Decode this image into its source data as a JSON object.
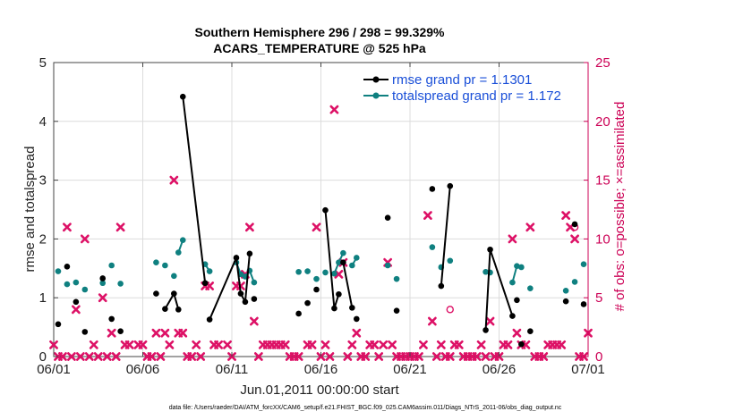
{
  "chart_data": {
    "type": "line",
    "title_line1": "Southern Hemisphere 296 / 298 = 99.329%",
    "title_line2": "ACARS_TEMPERATURE @ 525 hPa",
    "xlabel": "Jun.01,2011 00:00:00 start",
    "ylabel": "rmse and totalspread",
    "ylabel_right": "# of obs: o=possible; ×=assimilated",
    "footer": "data file: /Users/raeder/DAI/ATM_forcXX/CAM6_setup/f.e21.FHIST_BGC.f09_025.CAM6assim.011/Diags_NTrS_2011-06/obs_diag_output.nc",
    "xlim": [
      1,
      31
    ],
    "ylim": [
      0,
      5
    ],
    "ylim_right": [
      0,
      25
    ],
    "x_ticks": [
      1,
      6,
      11,
      16,
      21,
      26,
      31
    ],
    "x_tick_labels": [
      "06/01",
      "06/06",
      "06/11",
      "06/16",
      "06/21",
      "06/26",
      "07/01"
    ],
    "y_ticks": [
      0,
      1,
      2,
      3,
      4,
      5
    ],
    "y_tick_labels": [
      "0",
      "1",
      "2",
      "3",
      "4",
      "5"
    ],
    "y_ticks_right": [
      0,
      5,
      10,
      15,
      20,
      25
    ],
    "y_tick_labels_right": [
      "0",
      "5",
      "10",
      "15",
      "20",
      "25"
    ],
    "grid": true,
    "legend_position": "top-right",
    "colors": {
      "rmse": "#000000",
      "spread": "#0f8080",
      "obs": "#dd1166",
      "axis_right": "#cc0055",
      "legend_text": "#1a4fd8"
    },
    "series": [
      {
        "name": "rmse grand pr = 1.1301",
        "key": "rmse",
        "points": [
          [
            1.25,
            0.55
          ],
          [
            1.75,
            1.53
          ],
          [
            2.25,
            0.93
          ],
          [
            2.75,
            0.42
          ],
          [
            3.75,
            1.33
          ],
          [
            4.25,
            0.64
          ],
          [
            4.75,
            0.43
          ],
          [
            6.75,
            1.07
          ],
          [
            7.25,
            0.81
          ],
          [
            7.75,
            1.07
          ],
          [
            8.0,
            0.8
          ],
          [
            8.25,
            4.42
          ],
          [
            9.5,
            1.25
          ],
          [
            9.75,
            0.63
          ],
          [
            11.25,
            1.68
          ],
          [
            11.5,
            1.07
          ],
          [
            11.75,
            0.93
          ],
          [
            12.0,
            1.75
          ],
          [
            12.25,
            0.98
          ],
          [
            14.75,
            0.73
          ],
          [
            15.25,
            0.91
          ],
          [
            15.75,
            1.14
          ],
          [
            16.25,
            2.49
          ],
          [
            16.75,
            0.82
          ],
          [
            17.0,
            1.06
          ],
          [
            17.25,
            1.6
          ],
          [
            17.75,
            0.83
          ],
          [
            18.0,
            0.64
          ],
          [
            19.75,
            2.36
          ],
          [
            20.25,
            0.78
          ],
          [
            22.25,
            2.85
          ],
          [
            22.75,
            1.2
          ],
          [
            23.25,
            2.9
          ],
          [
            25.25,
            0.45
          ],
          [
            25.5,
            1.82
          ],
          [
            26.75,
            0.69
          ],
          [
            27.0,
            0.96
          ],
          [
            27.25,
            0.21
          ],
          [
            27.75,
            0.43
          ],
          [
            29.75,
            0.94
          ],
          [
            30.25,
            2.25
          ],
          [
            30.75,
            0.89
          ]
        ],
        "segments": [
          [
            8,
            9,
            10
          ],
          [
            11,
            12
          ],
          [
            13,
            14,
            15,
            16,
            17
          ],
          [
            22,
            23,
            24
          ],
          [
            25,
            26
          ],
          [
            31,
            32
          ],
          [
            33,
            34,
            35
          ]
        ]
      },
      {
        "name": "totalspread grand pr = 1.172",
        "key": "spread",
        "points": [
          [
            1.25,
            1.45
          ],
          [
            1.75,
            1.23
          ],
          [
            2.25,
            1.26
          ],
          [
            2.75,
            1.14
          ],
          [
            3.75,
            1.25
          ],
          [
            4.25,
            1.55
          ],
          [
            4.75,
            1.24
          ],
          [
            6.75,
            1.6
          ],
          [
            7.25,
            1.55
          ],
          [
            7.75,
            1.37
          ],
          [
            8.0,
            1.77
          ],
          [
            8.25,
            1.98
          ],
          [
            9.5,
            1.57
          ],
          [
            9.75,
            1.45
          ],
          [
            11.25,
            1.6
          ],
          [
            11.5,
            1.4
          ],
          [
            11.75,
            1.36
          ],
          [
            12.0,
            1.46
          ],
          [
            12.25,
            1.26
          ],
          [
            14.75,
            1.44
          ],
          [
            15.25,
            1.45
          ],
          [
            15.75,
            1.32
          ],
          [
            16.25,
            1.43
          ],
          [
            16.75,
            1.41
          ],
          [
            17.0,
            1.6
          ],
          [
            17.25,
            1.76
          ],
          [
            17.75,
            1.55
          ],
          [
            18.0,
            1.68
          ],
          [
            19.75,
            1.55
          ],
          [
            20.25,
            1.32
          ],
          [
            22.25,
            1.86
          ],
          [
            22.75,
            1.52
          ],
          [
            23.25,
            1.63
          ],
          [
            25.25,
            1.44
          ],
          [
            25.5,
            1.43
          ],
          [
            26.75,
            1.26
          ],
          [
            27.0,
            1.54
          ],
          [
            27.25,
            1.52
          ],
          [
            27.75,
            1.16
          ],
          [
            29.75,
            1.12
          ],
          [
            30.25,
            1.27
          ],
          [
            30.75,
            1.57
          ]
        ],
        "segments": [
          [
            10,
            11
          ],
          [
            12,
            13
          ],
          [
            14,
            15,
            16,
            17,
            18
          ],
          [
            23,
            24,
            25
          ],
          [
            26,
            27
          ],
          [
            33,
            34
          ],
          [
            35,
            36,
            37
          ]
        ]
      },
      {
        "name": "obs possible",
        "key": "possible",
        "points": [
          [
            23.25,
            4.0
          ],
          [
            30.25,
            11.0
          ]
        ]
      },
      {
        "name": "obs assimilated",
        "key": "assimilated",
        "points": [
          [
            1.0,
            1
          ],
          [
            1.25,
            0
          ],
          [
            1.5,
            0
          ],
          [
            1.75,
            11
          ],
          [
            2.0,
            0
          ],
          [
            2.25,
            4
          ],
          [
            2.5,
            0
          ],
          [
            2.75,
            10
          ],
          [
            3.0,
            0
          ],
          [
            3.25,
            1
          ],
          [
            3.5,
            0
          ],
          [
            3.75,
            5
          ],
          [
            4.0,
            0
          ],
          [
            4.25,
            2
          ],
          [
            4.5,
            0
          ],
          [
            4.75,
            11
          ],
          [
            5.0,
            1
          ],
          [
            5.25,
            1
          ],
          [
            5.75,
            1
          ],
          [
            6.0,
            1
          ],
          [
            6.25,
            0
          ],
          [
            6.5,
            0
          ],
          [
            6.75,
            2
          ],
          [
            7.0,
            0
          ],
          [
            7.25,
            2
          ],
          [
            7.5,
            1
          ],
          [
            7.75,
            15
          ],
          [
            8.0,
            2
          ],
          [
            8.25,
            2
          ],
          [
            8.5,
            0
          ],
          [
            8.75,
            0
          ],
          [
            9.0,
            1
          ],
          [
            9.25,
            0
          ],
          [
            9.5,
            6
          ],
          [
            9.75,
            6
          ],
          [
            10.0,
            1
          ],
          [
            10.25,
            1
          ],
          [
            10.75,
            1
          ],
          [
            11.0,
            0
          ],
          [
            11.25,
            6
          ],
          [
            11.5,
            6
          ],
          [
            11.75,
            7
          ],
          [
            12.0,
            11
          ],
          [
            12.25,
            3
          ],
          [
            12.5,
            0
          ],
          [
            12.75,
            1
          ],
          [
            13.0,
            1
          ],
          [
            13.25,
            1
          ],
          [
            13.5,
            1
          ],
          [
            13.75,
            1
          ],
          [
            14.0,
            1
          ],
          [
            14.25,
            0
          ],
          [
            14.5,
            0
          ],
          [
            14.75,
            0
          ],
          [
            15.25,
            1
          ],
          [
            15.5,
            1
          ],
          [
            15.75,
            11
          ],
          [
            16.0,
            0
          ],
          [
            16.25,
            1
          ],
          [
            16.5,
            0
          ],
          [
            16.75,
            21
          ],
          [
            17.0,
            7
          ],
          [
            17.25,
            8
          ],
          [
            17.5,
            0
          ],
          [
            17.75,
            1
          ],
          [
            18.0,
            2
          ],
          [
            18.25,
            0
          ],
          [
            18.5,
            0
          ],
          [
            18.75,
            1
          ],
          [
            19.0,
            1
          ],
          [
            19.25,
            0
          ],
          [
            19.5,
            1
          ],
          [
            19.75,
            8
          ],
          [
            20.0,
            1
          ],
          [
            20.25,
            0
          ],
          [
            20.5,
            0
          ],
          [
            20.75,
            0
          ],
          [
            21.0,
            0
          ],
          [
            21.25,
            0
          ],
          [
            21.5,
            0
          ],
          [
            21.75,
            1
          ],
          [
            22.0,
            12
          ],
          [
            22.25,
            3
          ],
          [
            22.5,
            0
          ],
          [
            22.75,
            1
          ],
          [
            23.0,
            0
          ],
          [
            23.25,
            0
          ],
          [
            23.5,
            1
          ],
          [
            23.75,
            1
          ],
          [
            24.0,
            0
          ],
          [
            24.25,
            0
          ],
          [
            24.5,
            0
          ],
          [
            24.75,
            0
          ],
          [
            25.0,
            1
          ],
          [
            25.25,
            0
          ],
          [
            25.5,
            3
          ],
          [
            25.75,
            0
          ],
          [
            26.0,
            0
          ],
          [
            26.25,
            1
          ],
          [
            26.5,
            1
          ],
          [
            26.75,
            10
          ],
          [
            27.0,
            2
          ],
          [
            27.25,
            1
          ],
          [
            27.5,
            1
          ],
          [
            27.75,
            11
          ],
          [
            28.0,
            0
          ],
          [
            28.25,
            0
          ],
          [
            28.5,
            0
          ],
          [
            28.75,
            1
          ],
          [
            29.0,
            1
          ],
          [
            29.25,
            1
          ],
          [
            29.5,
            1
          ],
          [
            29.75,
            12
          ],
          [
            30.0,
            11
          ],
          [
            30.25,
            10
          ],
          [
            30.5,
            0
          ],
          [
            30.75,
            0
          ],
          [
            31.0,
            2
          ]
        ]
      }
    ]
  }
}
